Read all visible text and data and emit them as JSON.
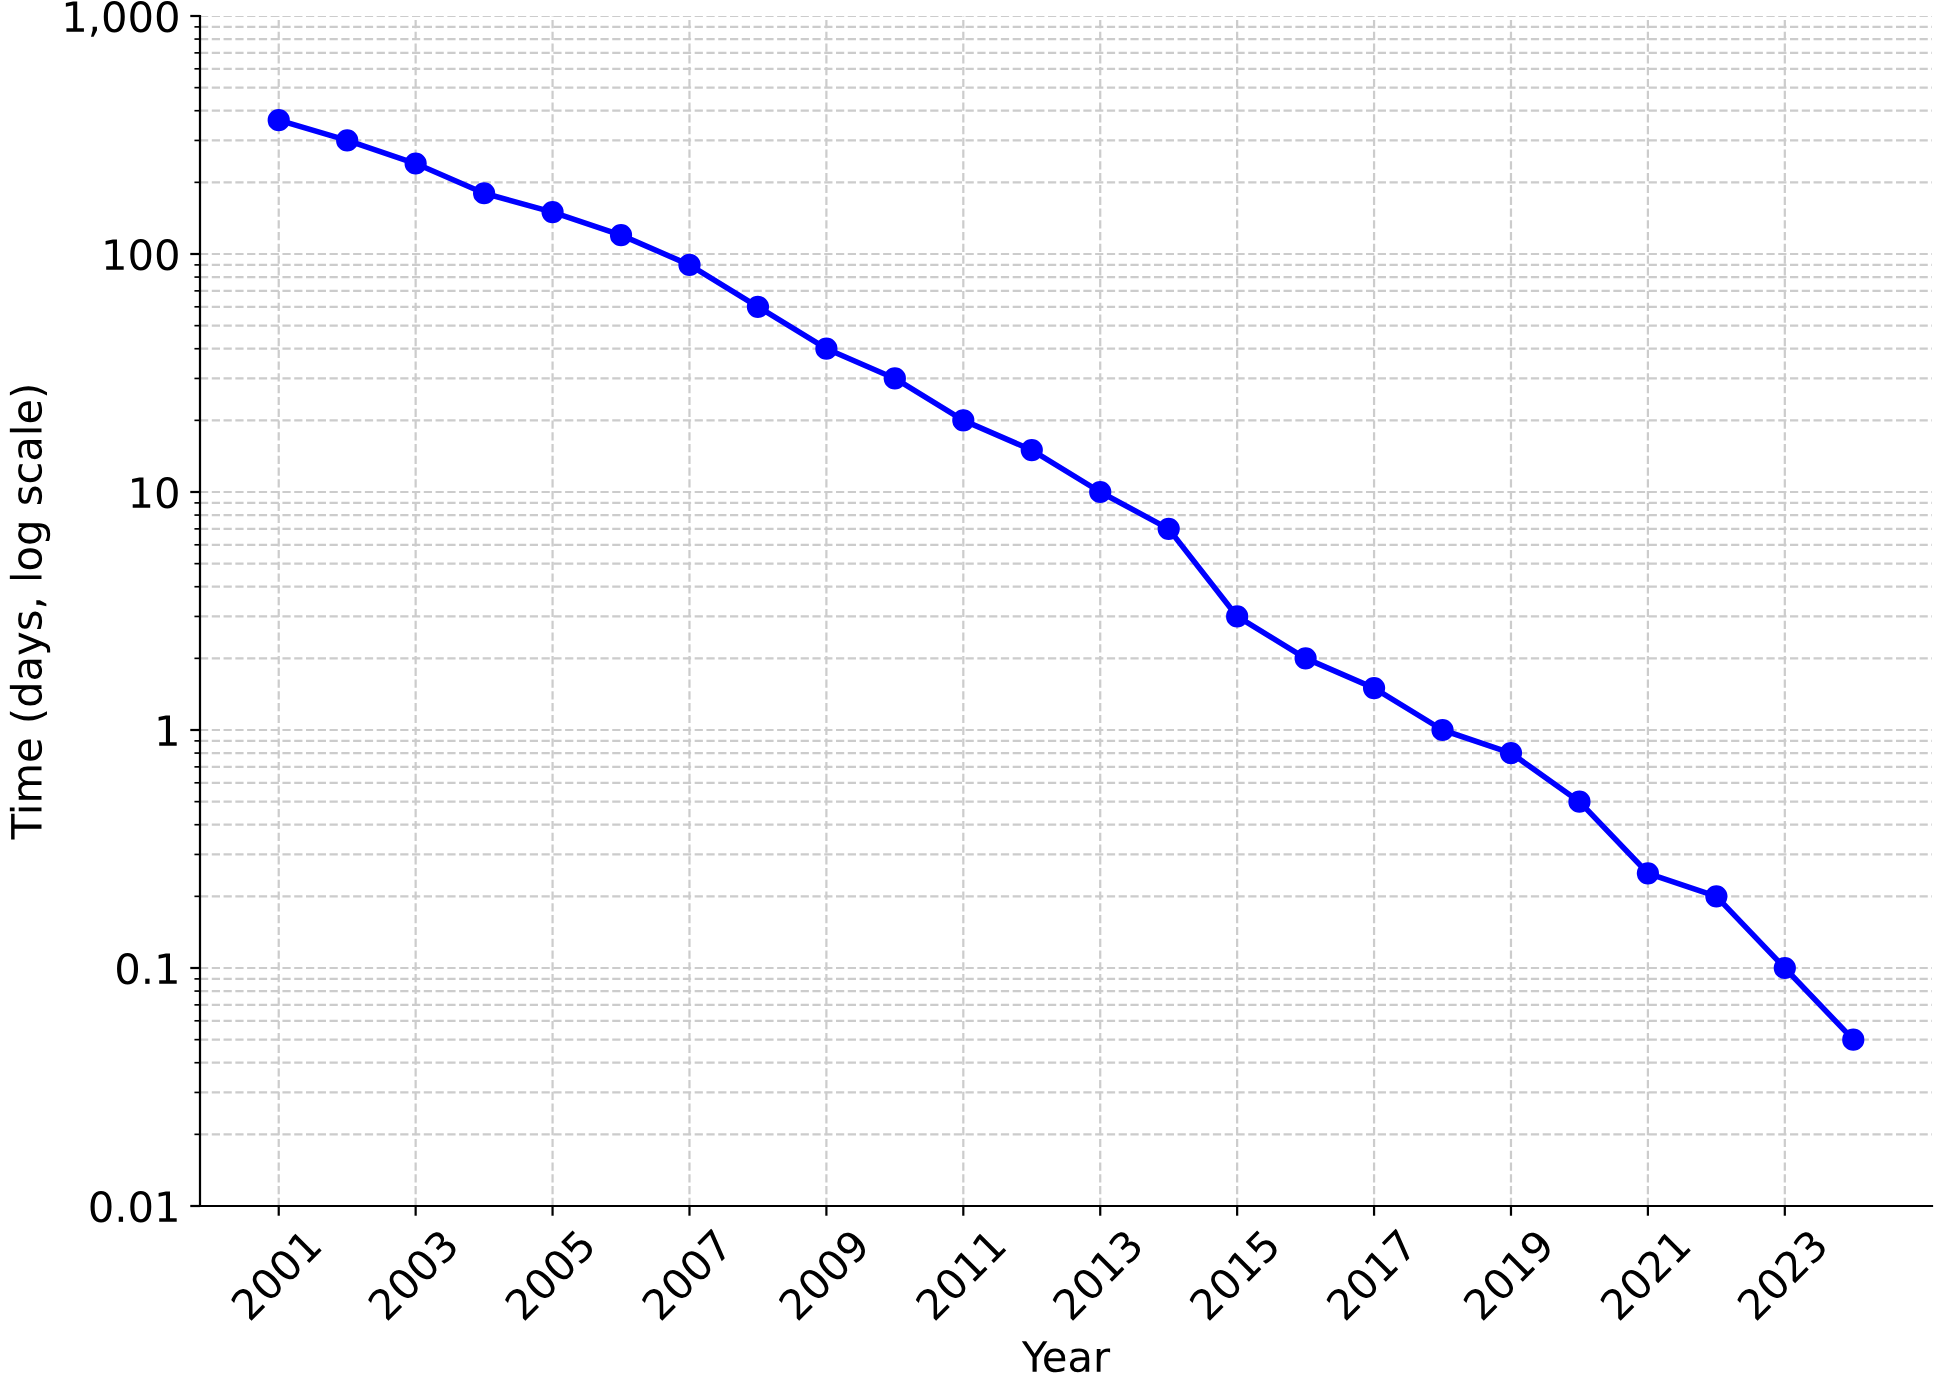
{
  "chart_data": {
    "type": "line",
    "xlabel": "Year",
    "ylabel": "Time (days, log scale)",
    "x": [
      2001,
      2002,
      2003,
      2004,
      2005,
      2006,
      2007,
      2008,
      2009,
      2010,
      2011,
      2012,
      2013,
      2014,
      2015,
      2016,
      2017,
      2018,
      2019,
      2020,
      2021,
      2022,
      2023,
      2024
    ],
    "series": [
      {
        "color": "#0000ff",
        "values": [
          365,
          300,
          240,
          180,
          150,
          120,
          90,
          60,
          40,
          30,
          20,
          15,
          10,
          7,
          3,
          2,
          1.5,
          1,
          0.8,
          0.5,
          0.25,
          0.2,
          0.1,
          0.05
        ]
      }
    ],
    "log": "y",
    "xlim": [
      1999.85,
      2025.15
    ],
    "ylim": [
      0.01,
      1000
    ],
    "xticks": [
      2001,
      2003,
      2005,
      2007,
      2009,
      2011,
      2013,
      2015,
      2017,
      2019,
      2021,
      2023
    ],
    "yticks": [
      0.01,
      0.1,
      1,
      10,
      100,
      {
        "value": 1000,
        "label": "1,000"
      }
    ],
    "grid": true,
    "marker": "circle",
    "line_style": "solid"
  }
}
